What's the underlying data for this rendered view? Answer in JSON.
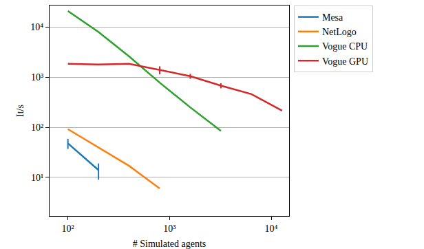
{
  "chart_data": {
    "type": "line",
    "x_label": "# Simulated agents",
    "y_label": "It/s",
    "log": true,
    "grid": "y",
    "legend": "right",
    "xlim": [
      66,
      15000
    ],
    "ylim": [
      1.7,
      27000
    ],
    "xticks": [
      {
        "value": 100,
        "label": "10²"
      },
      {
        "value": 1000,
        "label": "10³"
      },
      {
        "value": 10000,
        "label": "10⁴"
      }
    ],
    "yticks": [
      {
        "value": 10,
        "label": "10¹"
      },
      {
        "value": 100,
        "label": "10²"
      },
      {
        "value": 1000,
        "label": "10³"
      },
      {
        "value": 10000,
        "label": "10⁴"
      }
    ],
    "series": [
      {
        "name": "Mesa",
        "color": "#1f77b4",
        "x": [
          100,
          200
        ],
        "values": [
          48,
          14
        ],
        "errors": [
          11,
          5
        ]
      },
      {
        "name": "NetLogo",
        "color": "#ff7f0e",
        "x": [
          100,
          200,
          400,
          800
        ],
        "values": [
          92,
          40,
          17,
          6
        ],
        "errors": [
          null,
          null,
          null,
          null
        ]
      },
      {
        "name": "Vogue CPU",
        "color": "#2ca02c",
        "x": [
          100,
          200,
          400,
          800,
          1600,
          3200
        ],
        "values": [
          21000,
          8000,
          2600,
          780,
          250,
          85
        ],
        "errors": [
          null,
          null,
          null,
          null,
          null,
          null
        ]
      },
      {
        "name": "Vogue GPU",
        "color": "#d62728",
        "x": [
          100,
          200,
          400,
          800,
          1600,
          3200,
          6400,
          12800
        ],
        "values": [
          1850,
          1800,
          1850,
          1400,
          1050,
          680,
          460,
          215
        ],
        "errors": [
          null,
          null,
          null,
          250,
          120,
          80,
          null,
          null
        ]
      }
    ]
  }
}
